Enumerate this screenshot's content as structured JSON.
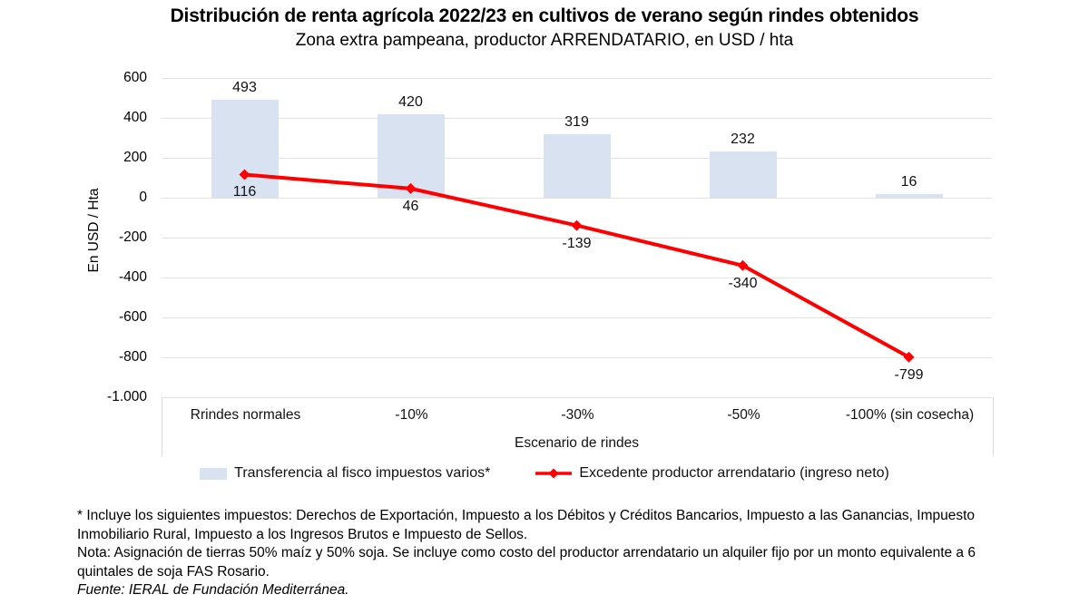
{
  "chart_data": {
    "type": "combo-bar-line",
    "title": "Distribución de renta agrícola 2022/23 en cultivos de verano según rindes obtenidos",
    "subtitle": "Zona extra pampeana, productor ARRENDATARIO, en USD / hta",
    "categories": [
      "Rrindes normales",
      "-10%",
      "-30%",
      "-50%",
      "-100% (sin cosecha)"
    ],
    "series": [
      {
        "name": "Transferencia al fisco impuestos varios*",
        "type": "bar",
        "color": "#d9e2f1",
        "values": [
          493,
          420,
          319,
          232,
          16
        ]
      },
      {
        "name": "Excedente productor arrendatario (ingreso neto)",
        "type": "line",
        "color": "#ff0000",
        "marker": "diamond",
        "values": [
          116,
          46,
          -139,
          -340,
          -799
        ]
      }
    ],
    "xlabel": "Escenario de rindes",
    "ylabel": "En USD / Hta",
    "ylim": [
      -1000,
      600
    ],
    "yticks": [
      600,
      400,
      200,
      0,
      -200,
      -400,
      -600,
      -800,
      -1000
    ],
    "ytick_labels": [
      "600",
      "400",
      "200",
      "0",
      "-200",
      "-400",
      "-600",
      "-800",
      "-1.000"
    ],
    "grid": true,
    "grid_color": "#e2e2e2",
    "axis_box_color": "#d9d9d9",
    "legend_position": "bottom"
  },
  "footnotes": {
    "asterisk": "* Incluye los siguientes impuestos: Derechos de Exportación, Impuesto a los Débitos y Créditos Bancarios, Impuesto a las Ganancias, Impuesto Inmobiliario Rural, Impuesto a los Ingresos Brutos e Impuesto de Sellos.",
    "nota": "Nota: Asignación de tierras 50% maíz y 50% soja. Se incluye como costo del productor arrendatario un alquiler fijo por un monto equivalente a 6 quintales de soja FAS Rosario.",
    "fuente": "Fuente: IERAL de Fundación Mediterránea."
  }
}
